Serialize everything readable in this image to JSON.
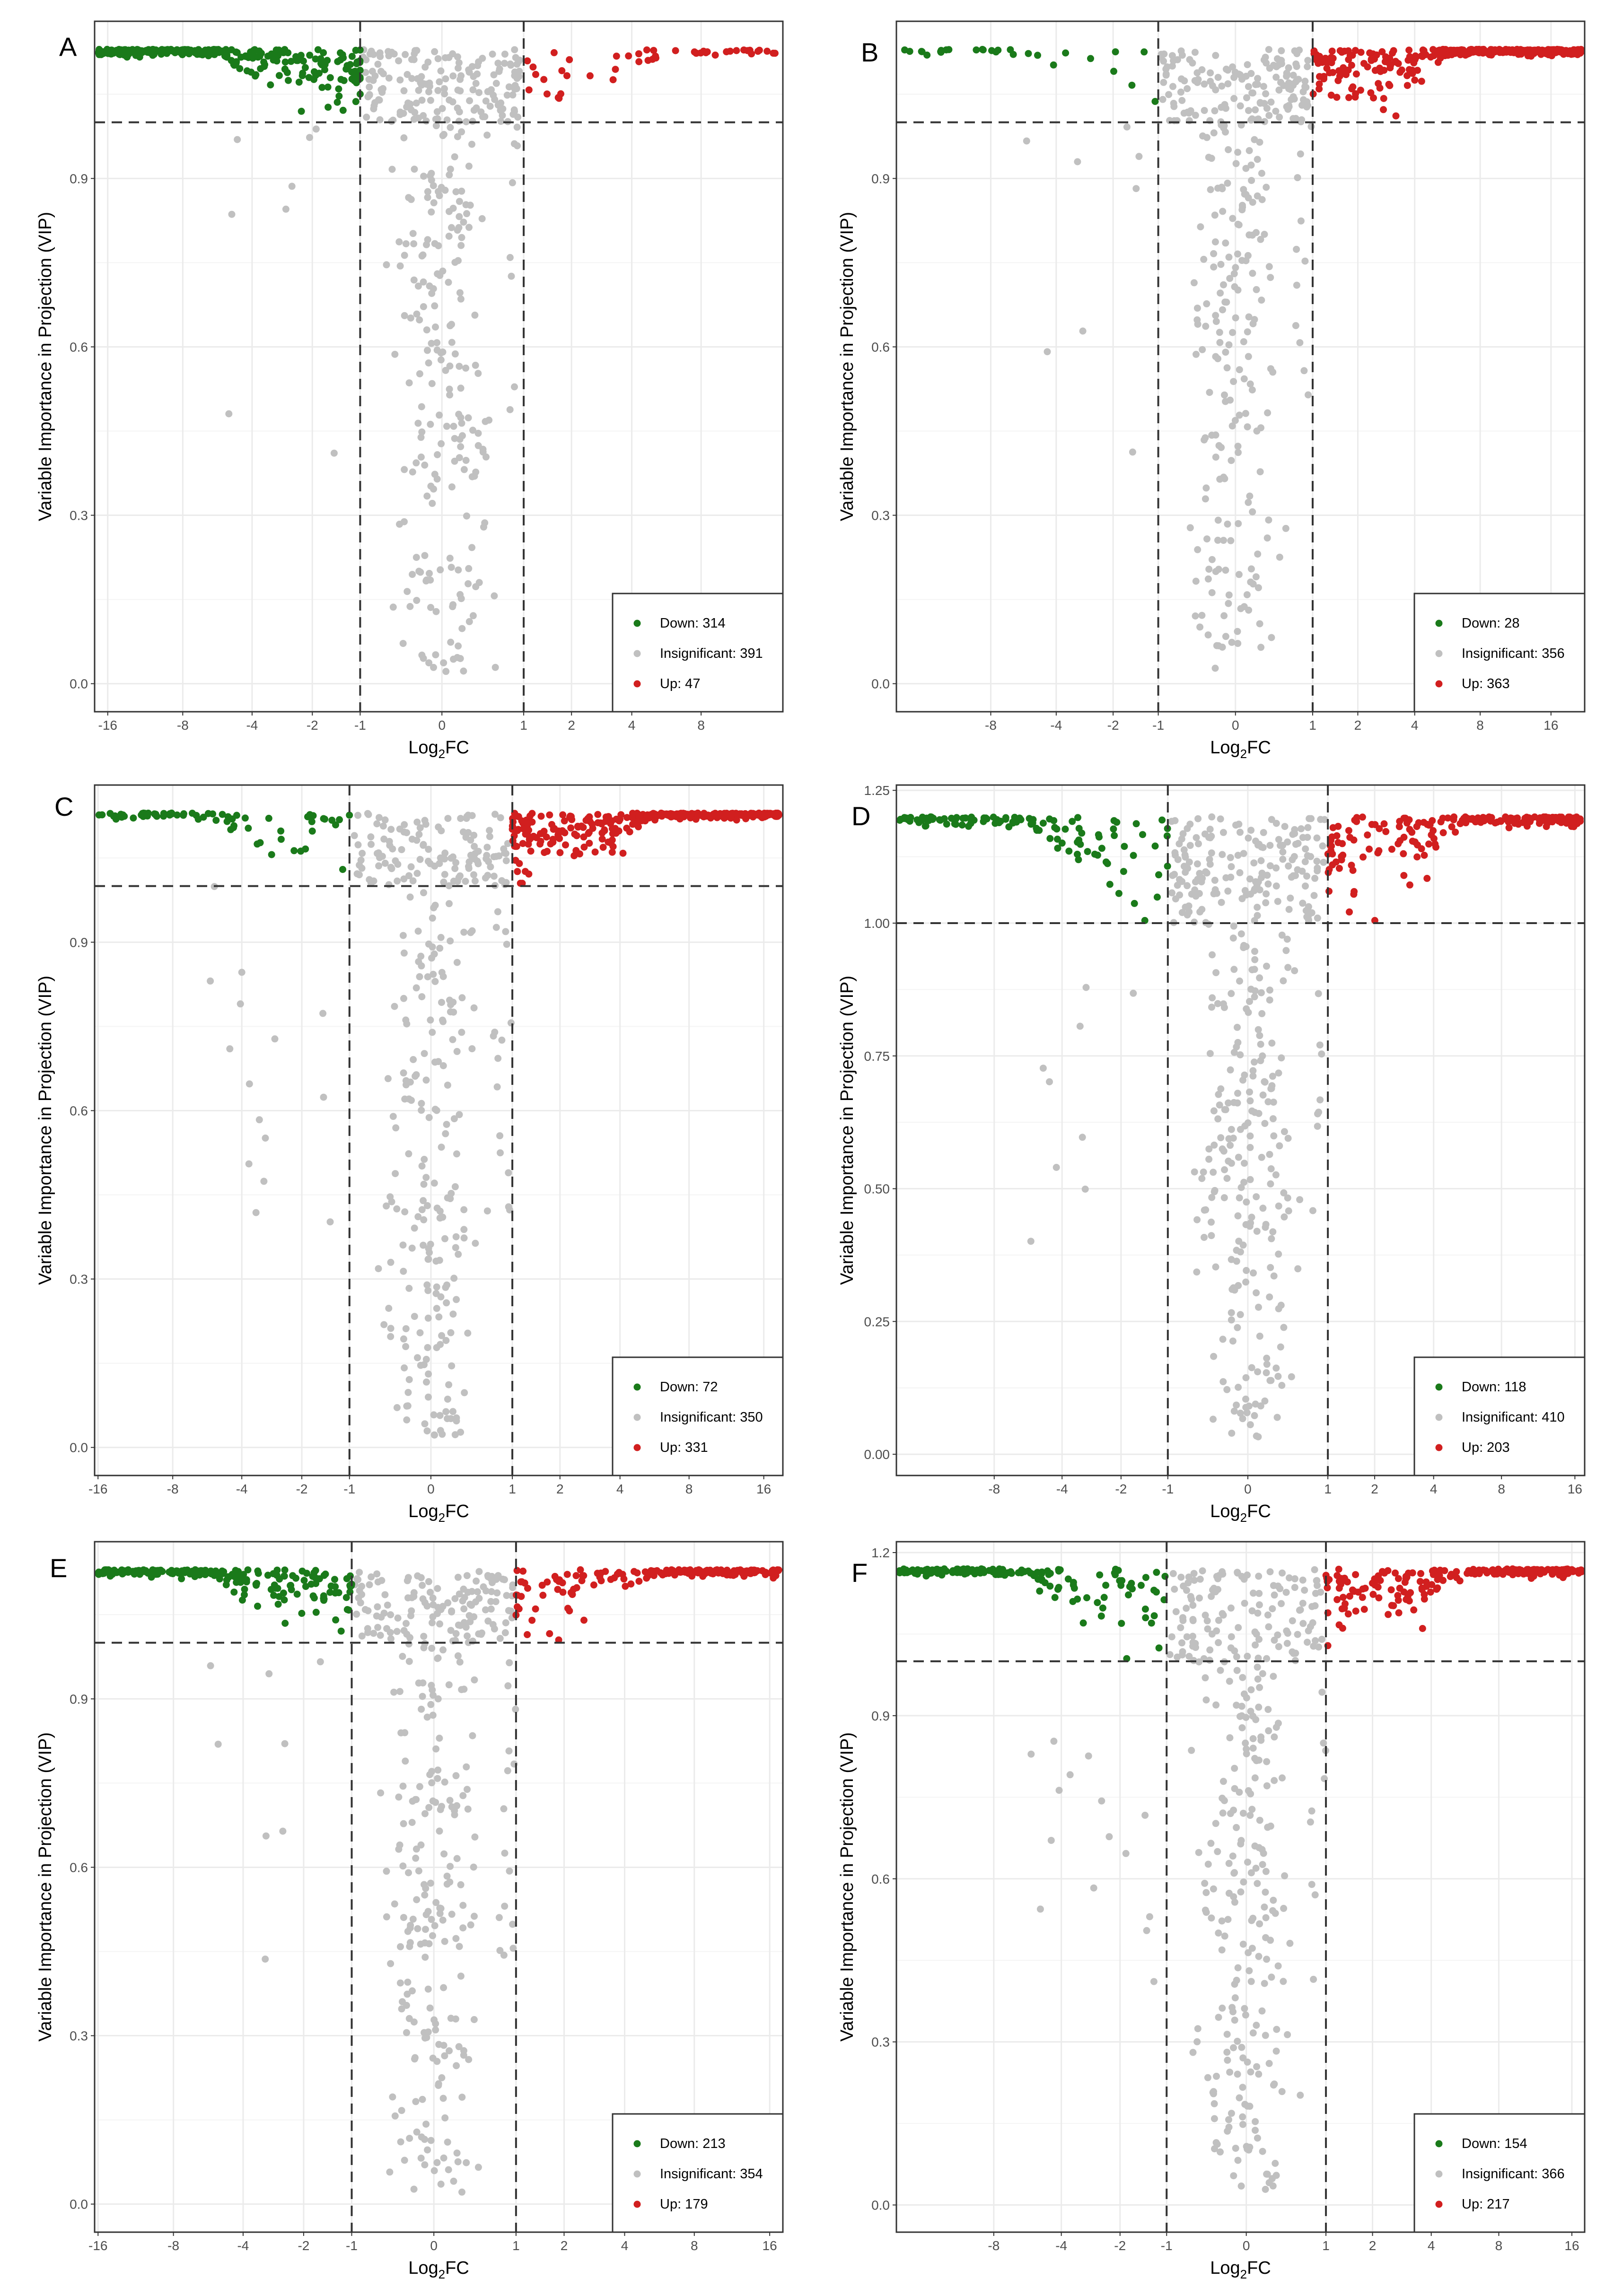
{
  "figure": {
    "xlabel_main": "Log",
    "xlabel_sub": "2",
    "xlabel_tail": "FC",
    "ylabel": "Variable Importance in Projection (VIP)",
    "thresholds": {
      "log2fc": [
        -1,
        1
      ],
      "vip": 1.0
    },
    "colors": {
      "down": "#1a7a1a",
      "insignificant": "#c0c0c0",
      "up": "#d11f1f",
      "grid": "#ebebeb",
      "dash": "#333333"
    }
  },
  "chart_data": [
    {
      "panel": "A",
      "type": "scatter",
      "xticks": [
        {
          "v": -16,
          "t": "-16"
        },
        {
          "v": -8,
          "t": "-8"
        },
        {
          "v": -4,
          "t": "-4"
        },
        {
          "v": -2,
          "t": "-2"
        },
        {
          "v": -1,
          "t": "-1"
        },
        {
          "v": 0,
          "t": "0"
        },
        {
          "v": 1,
          "t": "1"
        },
        {
          "v": 2,
          "t": "2"
        },
        {
          "v": 4,
          "t": "4"
        },
        {
          "v": 8,
          "t": "8"
        }
      ],
      "yticks": [
        {
          "v": 0,
          "t": "0.0"
        },
        {
          "v": 0.3,
          "t": "0.3"
        },
        {
          "v": 0.6,
          "t": "0.6"
        },
        {
          "v": 0.9,
          "t": "0.9"
        }
      ],
      "ylim": [
        -0.05,
        1.18
      ],
      "xmin": -18,
      "xmax": 17,
      "ytop": 1.13,
      "legend": [
        {
          "key": "down",
          "label": "Down: 314"
        },
        {
          "key": "insignificant",
          "label": "Insignificant: 391"
        },
        {
          "key": "up",
          "label": "Up: 47"
        }
      ],
      "counts": {
        "down": 314,
        "insignificant": 391,
        "up": 47
      }
    },
    {
      "panel": "B",
      "type": "scatter",
      "xticks": [
        {
          "v": -8,
          "t": "-8"
        },
        {
          "v": -4,
          "t": "-4"
        },
        {
          "v": -2,
          "t": "-2"
        },
        {
          "v": -1,
          "t": "-1"
        },
        {
          "v": 0,
          "t": "0"
        },
        {
          "v": 1,
          "t": "1"
        },
        {
          "v": 2,
          "t": "2"
        },
        {
          "v": 4,
          "t": "4"
        },
        {
          "v": 8,
          "t": "8"
        },
        {
          "v": 16,
          "t": "16"
        }
      ],
      "yticks": [
        {
          "v": 0,
          "t": "0.0"
        },
        {
          "v": 0.3,
          "t": "0.3"
        },
        {
          "v": 0.6,
          "t": "0.6"
        },
        {
          "v": 0.9,
          "t": "0.9"
        }
      ],
      "ylim": [
        -0.05,
        1.18
      ],
      "xmin": -20,
      "xmax": 22,
      "ytop": 1.13,
      "legend": [
        {
          "key": "down",
          "label": "Down: 28"
        },
        {
          "key": "insignificant",
          "label": "Insignificant: 356"
        },
        {
          "key": "up",
          "label": "Up: 363"
        }
      ],
      "counts": {
        "down": 28,
        "insignificant": 356,
        "up": 363
      }
    },
    {
      "panel": "C",
      "type": "scatter",
      "xticks": [
        {
          "v": -16,
          "t": "-16"
        },
        {
          "v": -8,
          "t": "-8"
        },
        {
          "v": -4,
          "t": "-4"
        },
        {
          "v": -2,
          "t": "-2"
        },
        {
          "v": -1,
          "t": "-1"
        },
        {
          "v": 0,
          "t": "0"
        },
        {
          "v": 1,
          "t": "1"
        },
        {
          "v": 2,
          "t": "2"
        },
        {
          "v": 4,
          "t": "4"
        },
        {
          "v": 8,
          "t": "8"
        },
        {
          "v": 16,
          "t": "16"
        }
      ],
      "yticks": [
        {
          "v": 0,
          "t": "0.0"
        },
        {
          "v": 0.3,
          "t": "0.3"
        },
        {
          "v": 0.6,
          "t": "0.6"
        },
        {
          "v": 0.9,
          "t": "0.9"
        }
      ],
      "ylim": [
        -0.05,
        1.18
      ],
      "xmin": -16.5,
      "xmax": 19,
      "ytop": 1.13,
      "legend": [
        {
          "key": "down",
          "label": "Down: 72"
        },
        {
          "key": "insignificant",
          "label": "Insignificant: 350"
        },
        {
          "key": "up",
          "label": "Up: 331"
        }
      ],
      "counts": {
        "down": 72,
        "insignificant": 350,
        "up": 331
      }
    },
    {
      "panel": "D",
      "type": "scatter",
      "xticks": [
        {
          "v": -8,
          "t": "-8"
        },
        {
          "v": -4,
          "t": "-4"
        },
        {
          "v": -2,
          "t": "-2"
        },
        {
          "v": -1,
          "t": "-1"
        },
        {
          "v": 0,
          "t": "0"
        },
        {
          "v": 1,
          "t": "1"
        },
        {
          "v": 2,
          "t": "2"
        },
        {
          "v": 4,
          "t": "4"
        },
        {
          "v": 8,
          "t": "8"
        },
        {
          "v": 16,
          "t": "16"
        }
      ],
      "yticks": [
        {
          "v": 0,
          "t": "0.00"
        },
        {
          "v": 0.25,
          "t": "0.25"
        },
        {
          "v": 0.5,
          "t": "0.50"
        },
        {
          "v": 0.75,
          "t": "0.75"
        },
        {
          "v": 1.0,
          "t": "1.00"
        },
        {
          "v": 1.25,
          "t": "1.25"
        }
      ],
      "ylim": [
        -0.04,
        1.26
      ],
      "xmin": -20,
      "xmax": 17.5,
      "ytop": 1.2,
      "legend": [
        {
          "key": "down",
          "label": "Down: 118"
        },
        {
          "key": "insignificant",
          "label": "Insignificant: 410"
        },
        {
          "key": "up",
          "label": "Up: 203"
        }
      ],
      "counts": {
        "down": 118,
        "insignificant": 410,
        "up": 203
      }
    },
    {
      "panel": "E",
      "type": "scatter",
      "xticks": [
        {
          "v": -16,
          "t": "-16"
        },
        {
          "v": -8,
          "t": "-8"
        },
        {
          "v": -4,
          "t": "-4"
        },
        {
          "v": -2,
          "t": "-2"
        },
        {
          "v": -1,
          "t": "-1"
        },
        {
          "v": 0,
          "t": "0"
        },
        {
          "v": 1,
          "t": "1"
        },
        {
          "v": 2,
          "t": "2"
        },
        {
          "v": 4,
          "t": "4"
        },
        {
          "v": 8,
          "t": "8"
        },
        {
          "v": 16,
          "t": "16"
        }
      ],
      "yticks": [
        {
          "v": 0,
          "t": "0.0"
        },
        {
          "v": 0.3,
          "t": "0.3"
        },
        {
          "v": 0.6,
          "t": "0.6"
        },
        {
          "v": 0.9,
          "t": "0.9"
        }
      ],
      "ylim": [
        -0.05,
        1.18
      ],
      "xmin": -16.5,
      "xmax": 18,
      "ytop": 1.13,
      "legend": [
        {
          "key": "down",
          "label": "Down: 213"
        },
        {
          "key": "insignificant",
          "label": "Insignificant: 354"
        },
        {
          "key": "up",
          "label": "Up: 179"
        }
      ],
      "counts": {
        "down": 213,
        "insignificant": 354,
        "up": 179
      }
    },
    {
      "panel": "F",
      "type": "scatter",
      "xticks": [
        {
          "v": -8,
          "t": "-8"
        },
        {
          "v": -4,
          "t": "-4"
        },
        {
          "v": -2,
          "t": "-2"
        },
        {
          "v": -1,
          "t": "-1"
        },
        {
          "v": 0,
          "t": "0"
        },
        {
          "v": 1,
          "t": "1"
        },
        {
          "v": 2,
          "t": "2"
        },
        {
          "v": 4,
          "t": "4"
        },
        {
          "v": 8,
          "t": "8"
        },
        {
          "v": 16,
          "t": "16"
        }
      ],
      "yticks": [
        {
          "v": 0,
          "t": "0.0"
        },
        {
          "v": 0.3,
          "t": "0.3"
        },
        {
          "v": 0.6,
          "t": "0.6"
        },
        {
          "v": 0.9,
          "t": "0.9"
        },
        {
          "v": 1.2,
          "t": "1.2"
        }
      ],
      "ylim": [
        -0.05,
        1.22
      ],
      "xmin": -20,
      "xmax": 18,
      "ytop": 1.17,
      "legend": [
        {
          "key": "down",
          "label": "Down: 154"
        },
        {
          "key": "insignificant",
          "label": "Insignificant: 366"
        },
        {
          "key": "up",
          "label": "Up: 217"
        }
      ],
      "counts": {
        "down": 154,
        "insignificant": 366,
        "up": 217
      }
    }
  ]
}
